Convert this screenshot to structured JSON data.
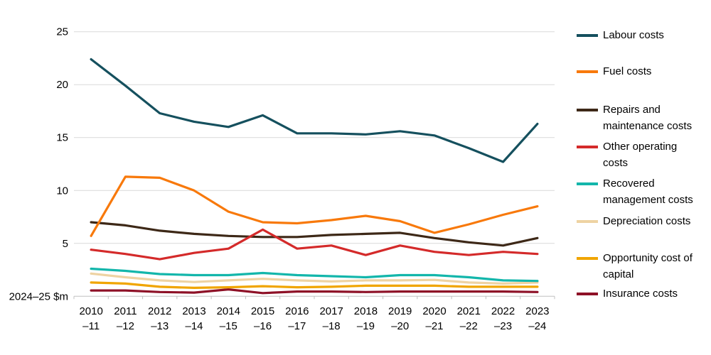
{
  "chart_data": {
    "type": "line",
    "title": "",
    "unit_label": "2024–25 $m",
    "xlabel": "",
    "ylabel": "2024–25 $m",
    "ylim": [
      0,
      25
    ],
    "yticks": [
      5,
      10,
      15,
      20,
      25
    ],
    "grid": true,
    "legend_position": "right",
    "x_labels": [
      [
        "2010",
        "–11"
      ],
      [
        "2011",
        "–12"
      ],
      [
        "2012",
        "–13"
      ],
      [
        "2013",
        "–14"
      ],
      [
        "2014",
        "–15"
      ],
      [
        "2015",
        "–16"
      ],
      [
        "2016",
        "–17"
      ],
      [
        "2017",
        "–18"
      ],
      [
        "2018",
        "–19"
      ],
      [
        "2019",
        "–20"
      ],
      [
        "2020",
        "–21"
      ],
      [
        "2021",
        "–22"
      ],
      [
        "2022",
        "–23"
      ],
      [
        "2023",
        "–24"
      ]
    ],
    "series": [
      {
        "name": "Labour costs",
        "color": "#15505e",
        "values": [
          22.4,
          19.9,
          17.3,
          16.5,
          16.0,
          17.1,
          15.4,
          15.4,
          15.3,
          15.6,
          15.2,
          14.0,
          12.7,
          16.3
        ]
      },
      {
        "name": "Fuel costs",
        "color": "#f8790b",
        "values": [
          5.7,
          11.3,
          11.2,
          10.0,
          8.0,
          7.0,
          6.9,
          7.2,
          7.6,
          7.1,
          6.0,
          6.8,
          7.7,
          8.5
        ]
      },
      {
        "name": "Repairs and maintenance costs",
        "color": "#3d2817",
        "values": [
          7.0,
          6.7,
          6.2,
          5.9,
          5.7,
          5.6,
          5.6,
          5.8,
          5.9,
          6.0,
          5.5,
          5.1,
          4.8,
          5.5
        ]
      },
      {
        "name": "Other operating costs",
        "color": "#d42a2a",
        "values": [
          4.4,
          4.0,
          3.5,
          4.1,
          4.5,
          6.3,
          4.5,
          4.8,
          3.9,
          4.8,
          4.2,
          3.9,
          4.2,
          4.0
        ]
      },
      {
        "name": "Recovered management costs",
        "color": "#13b6ab",
        "values": [
          2.6,
          2.4,
          2.1,
          2.0,
          2.0,
          2.2,
          2.0,
          1.9,
          1.8,
          2.0,
          2.0,
          1.8,
          1.5,
          1.45
        ]
      },
      {
        "name": "Depreciation costs",
        "color": "#eed3a3",
        "values": [
          2.15,
          1.8,
          1.5,
          1.35,
          1.5,
          1.65,
          1.5,
          1.4,
          1.5,
          1.5,
          1.55,
          1.3,
          1.2,
          1.3
        ]
      },
      {
        "name": "Opportunity cost of capital",
        "color": "#f0a500",
        "values": [
          1.3,
          1.2,
          0.9,
          0.8,
          0.85,
          0.95,
          0.85,
          0.9,
          1.0,
          1.0,
          1.0,
          0.9,
          0.9,
          0.9
        ]
      },
      {
        "name": "Insurance costs",
        "color": "#8e1127",
        "values": [
          0.55,
          0.55,
          0.4,
          0.35,
          0.65,
          0.3,
          0.45,
          0.45,
          0.4,
          0.45,
          0.45,
          0.45,
          0.45,
          0.4
        ]
      }
    ],
    "colors": {
      "gridline": "#d9d9d9",
      "axis": "#c0c0c0",
      "text": "#000000",
      "background": "#ffffff"
    }
  }
}
